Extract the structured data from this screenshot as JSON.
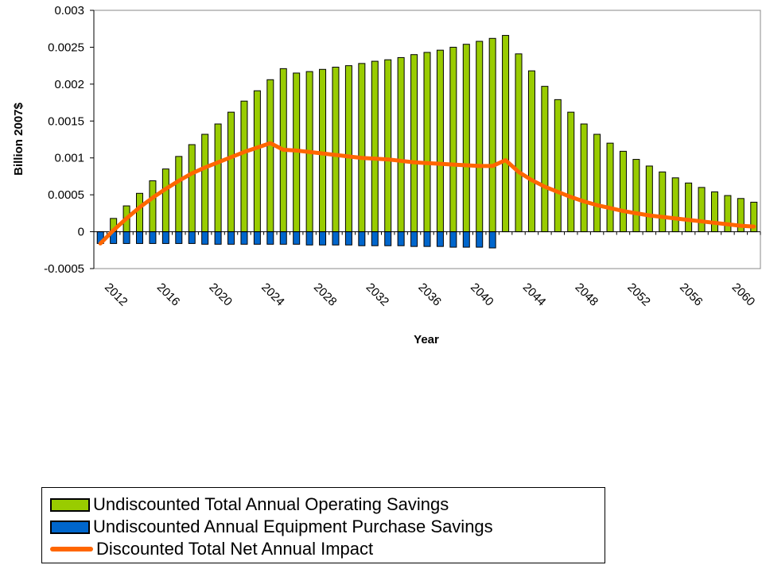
{
  "chart_data": {
    "type": "bar",
    "title": "",
    "xlabel": "Year",
    "ylabel": "Billion 2007$",
    "ylim": [
      -0.0005,
      0.003
    ],
    "yticks": [
      "-0.0005",
      "0",
      "0.0005",
      "0.001",
      "0.0015",
      "0.002",
      "0.0025",
      "0.003"
    ],
    "ytick_values": [
      -0.0005,
      0,
      0.0005,
      0.001,
      0.0015,
      0.002,
      0.0025,
      0.003
    ],
    "xtick_labels": [
      "2012",
      "2016",
      "2020",
      "2024",
      "2028",
      "2032",
      "2036",
      "2040",
      "2044",
      "2048",
      "2052",
      "2056",
      "2060"
    ],
    "x": [
      2011,
      2012,
      2013,
      2014,
      2015,
      2016,
      2017,
      2018,
      2019,
      2020,
      2021,
      2022,
      2023,
      2024,
      2025,
      2026,
      2027,
      2028,
      2029,
      2030,
      2031,
      2032,
      2033,
      2034,
      2035,
      2036,
      2037,
      2038,
      2039,
      2040,
      2041,
      2042,
      2043,
      2044,
      2045,
      2046,
      2047,
      2048,
      2049,
      2050,
      2051,
      2052,
      2053,
      2054,
      2055,
      2056,
      2057,
      2058,
      2059,
      2060,
      2061
    ],
    "grid": false,
    "legend_position": "bottom",
    "series": [
      {
        "name": "Undiscounted Total Annual Operating Savings",
        "kind": "bar",
        "color": "#99CC00",
        "values": [
          0,
          0.00018,
          0.00035,
          0.00052,
          0.00069,
          0.00085,
          0.00102,
          0.00118,
          0.00132,
          0.00146,
          0.00162,
          0.00177,
          0.00191,
          0.00206,
          0.00221,
          0.00215,
          0.00217,
          0.0022,
          0.00223,
          0.00225,
          0.00228,
          0.00231,
          0.00233,
          0.00236,
          0.0024,
          0.00243,
          0.00246,
          0.0025,
          0.00254,
          0.00258,
          0.00262,
          0.00266,
          0.00241,
          0.00218,
          0.00197,
          0.00179,
          0.00162,
          0.00146,
          0.00132,
          0.0012,
          0.00109,
          0.00098,
          0.00089,
          0.00081,
          0.00073,
          0.00066,
          0.0006,
          0.00054,
          0.00049,
          0.00045,
          0.0004
        ]
      },
      {
        "name": "Undiscounted Annual Equipment Purchase Savings",
        "kind": "bar",
        "color": "#0066CC",
        "values": [
          -0.00016,
          -0.00016,
          -0.00016,
          -0.00016,
          -0.00016,
          -0.00016,
          -0.00016,
          -0.00016,
          -0.00017,
          -0.00017,
          -0.00017,
          -0.00017,
          -0.00017,
          -0.00017,
          -0.00017,
          -0.00017,
          -0.00018,
          -0.00018,
          -0.00018,
          -0.00018,
          -0.00019,
          -0.00019,
          -0.00019,
          -0.00019,
          -0.0002,
          -0.0002,
          -0.0002,
          -0.00021,
          -0.00021,
          -0.00021,
          -0.00022,
          0,
          0,
          0,
          0,
          0,
          0,
          0,
          0,
          0,
          0,
          0,
          0,
          0,
          0,
          0,
          0,
          0,
          0,
          0,
          0
        ]
      },
      {
        "name": "Discounted Total Net Annual Impact",
        "kind": "line",
        "color": "#FF6600",
        "values": [
          -0.00016,
          2e-05,
          0.00018,
          0.00033,
          0.00046,
          0.00058,
          0.00069,
          0.00079,
          0.00087,
          0.00094,
          0.00101,
          0.00108,
          0.00114,
          0.0012,
          0.00111,
          0.0011,
          0.00108,
          0.00106,
          0.00104,
          0.00102,
          0.001,
          0.00099,
          0.00098,
          0.00096,
          0.00094,
          0.00093,
          0.00092,
          0.00091,
          0.0009,
          0.00089,
          0.00089,
          0.00097,
          0.00081,
          0.0007,
          0.00061,
          0.00054,
          0.00047,
          0.00041,
          0.00036,
          0.00032,
          0.00028,
          0.00025,
          0.00022,
          0.0002,
          0.00018,
          0.00016,
          0.00014,
          0.00012,
          0.0001,
          8e-05,
          7e-05
        ]
      }
    ]
  },
  "legend": {
    "items": [
      {
        "label": "Undiscounted Total Annual Operating Savings"
      },
      {
        "label": "Undiscounted Annual Equipment Purchase Savings"
      },
      {
        "label": "Discounted Total Net Annual Impact"
      }
    ]
  }
}
